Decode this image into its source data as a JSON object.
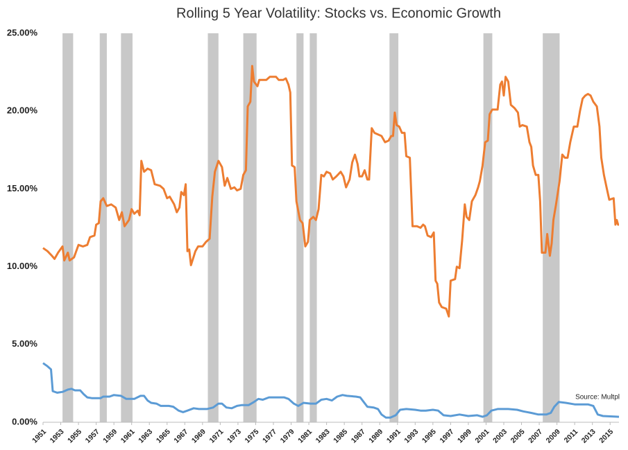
{
  "chart_data": {
    "type": "line",
    "title": "Rolling 5 Year Volatility: Stocks vs. Economic Growth",
    "annotation": "Source: Multpl",
    "xlim": [
      1951,
      2016
    ],
    "xticks": [
      1951,
      1953,
      1955,
      1957,
      1959,
      1961,
      1963,
      1965,
      1967,
      1969,
      1971,
      1973,
      1975,
      1977,
      1979,
      1981,
      1983,
      1985,
      1987,
      1989,
      1991,
      1993,
      1995,
      1997,
      1999,
      2001,
      2003,
      2005,
      2007,
      2009,
      2011,
      2013,
      2015
    ],
    "ylim": [
      0,
      25
    ],
    "yticks": [
      {
        "value": 0,
        "label": "0.00%"
      },
      {
        "value": 5,
        "label": "5.00%"
      },
      {
        "value": 10,
        "label": "10.00%"
      },
      {
        "value": 15,
        "label": "15.00%"
      },
      {
        "value": 20,
        "label": "20.00%"
      },
      {
        "value": 25,
        "label": "25.00%"
      }
    ],
    "grid": false,
    "shaded_x_ranges": [
      [
        1953.2,
        1954.4
      ],
      [
        1957.4,
        1958.2
      ],
      [
        1959.8,
        1961.1
      ],
      [
        1969.6,
        1970.8
      ],
      [
        1973.6,
        1975.1
      ],
      [
        1979.6,
        1980.4
      ],
      [
        1981.1,
        1981.9
      ],
      [
        1990.1,
        1991.1
      ],
      [
        2000.7,
        2001.7
      ],
      [
        2007.4,
        2009.3
      ]
    ],
    "shade_color": "#c8c8c8",
    "series": [
      {
        "color": "#ed7d31",
        "x": [
          1951,
          1951.5,
          1952,
          1952.3,
          1952.7,
          1953.2,
          1953.4,
          1953.8,
          1954,
          1954.5,
          1955,
          1955.5,
          1956,
          1956.3,
          1956.8,
          1957,
          1957.3,
          1957.5,
          1957.8,
          1958.2,
          1958.7,
          1959.2,
          1959.6,
          1959.9,
          1960.2,
          1960.7,
          1961,
          1961.3,
          1961.7,
          1961.9,
          1962.1,
          1962.4,
          1962.8,
          1963.2,
          1963.6,
          1964.2,
          1964.6,
          1965,
          1965.3,
          1965.8,
          1966.1,
          1966.4,
          1966.6,
          1966.9,
          1967.1,
          1967.3,
          1967.5,
          1967.7,
          1968.2,
          1968.5,
          1969,
          1969.4,
          1969.8,
          1970.1,
          1970.4,
          1970.8,
          1971.2,
          1971.5,
          1971.8,
          1972.2,
          1972.6,
          1972.9,
          1973.3,
          1973.6,
          1973.9,
          1974.1,
          1974.4,
          1974.6,
          1974.8,
          1975.2,
          1975.4,
          1976.2,
          1976.6,
          1977.3,
          1977.6,
          1978.1,
          1978.4,
          1978.7,
          1978.9,
          1979.1,
          1979.4,
          1979.6,
          1980,
          1980.3,
          1980.6,
          1980.9,
          1981.1,
          1981.5,
          1981.8,
          1982.1,
          1982.4,
          1982.7,
          1983,
          1983.4,
          1983.7,
          1984.1,
          1984.6,
          1984.9,
          1985.2,
          1985.6,
          1985.9,
          1986.2,
          1986.5,
          1986.7,
          1987,
          1987.3,
          1987.6,
          1987.8,
          1988.1,
          1988.4,
          1988.8,
          1989.2,
          1989.6,
          1990,
          1990.3,
          1990.5,
          1990.7,
          1990.9,
          1991.2,
          1991.5,
          1991.8,
          1992,
          1992.4,
          1992.7,
          1993.2,
          1993.6,
          1993.9,
          1994.1,
          1994.4,
          1994.8,
          1995.1,
          1995.3,
          1995.5,
          1995.7,
          1996,
          1996.5,
          1996.8,
          1997,
          1997.5,
          1997.7,
          1998,
          1998.3,
          1998.6,
          1998.8,
          1999.1,
          1999.4,
          1999.8,
          2000.1,
          2000.3,
          2000.6,
          2000.9,
          2001.2,
          2001.4,
          2001.7,
          2002.3,
          2002.6,
          2002.8,
          2003,
          2003.2,
          2003.5,
          2003.8,
          2004.2,
          2004.6,
          2004.8,
          2005.1,
          2005.6,
          2005.9,
          2006.1,
          2006.3,
          2006.6,
          2006.9,
          2007.1,
          2007.3,
          2007.7,
          2007.9,
          2008.2,
          2008.4,
          2008.6,
          2008.9,
          2009.3,
          2009.6,
          2009.9,
          2010.2,
          2010.5,
          2010.9,
          2011.3,
          2011.6,
          2011.9,
          2012.2,
          2012.5,
          2012.8,
          2013.1,
          2013.5,
          2013.8,
          2014,
          2014.3,
          2014.6,
          2014.9,
          2015.4,
          2015.6,
          2015.75,
          2015.9,
          2016
        ],
        "values": [
          11.2,
          11.0,
          10.7,
          10.5,
          10.9,
          11.3,
          10.4,
          10.9,
          10.4,
          10.6,
          11.4,
          11.3,
          11.4,
          11.9,
          12.0,
          12.7,
          12.8,
          14.2,
          14.4,
          13.9,
          14.0,
          13.8,
          13.0,
          13.5,
          12.6,
          13.0,
          13.7,
          13.4,
          13.6,
          13.3,
          16.8,
          16.1,
          16.3,
          16.2,
          15.3,
          15.2,
          15.0,
          14.4,
          14.5,
          14.0,
          13.5,
          13.8,
          14.8,
          14.6,
          15.3,
          11.0,
          11.1,
          10.1,
          11.0,
          11.3,
          11.3,
          11.6,
          11.8,
          14.5,
          16.1,
          16.8,
          16.4,
          15.2,
          15.7,
          15.0,
          15.1,
          14.9,
          15.0,
          15.9,
          16.2,
          20.3,
          20.6,
          22.9,
          21.9,
          21.6,
          22.0,
          22.0,
          22.2,
          22.2,
          22.0,
          22.0,
          22.1,
          21.7,
          21.2,
          16.5,
          16.4,
          14.2,
          13.0,
          12.8,
          11.3,
          11.6,
          13.0,
          13.2,
          13.0,
          13.7,
          15.9,
          15.8,
          16.1,
          16.0,
          15.6,
          15.8,
          16.1,
          15.8,
          15.1,
          15.6,
          16.7,
          17.2,
          16.6,
          15.8,
          15.8,
          16.2,
          15.6,
          15.6,
          18.9,
          18.6,
          18.5,
          18.4,
          18.0,
          18.1,
          18.4,
          18.4,
          19.9,
          19.1,
          19.0,
          18.6,
          18.6,
          17.1,
          17.0,
          12.6,
          12.6,
          12.5,
          12.7,
          12.6,
          12.0,
          11.9,
          12.2,
          9.1,
          8.9,
          7.7,
          7.4,
          7.3,
          6.8,
          9.1,
          9.2,
          10.0,
          9.9,
          11.7,
          14.0,
          13.2,
          13.0,
          14.2,
          14.6,
          15.1,
          15.5,
          16.5,
          18.0,
          18.1,
          19.8,
          20.1,
          20.1,
          21.7,
          21.9,
          21.0,
          22.2,
          21.9,
          20.4,
          20.2,
          19.9,
          19.0,
          19.1,
          19.0,
          18.0,
          17.7,
          16.5,
          15.9,
          15.9,
          14.2,
          10.9,
          10.9,
          12.1,
          10.7,
          11.5,
          13.0,
          14.0,
          15.5,
          17.2,
          17.0,
          17.0,
          18.0,
          19.0,
          19.0,
          20.0,
          20.8,
          21.0,
          21.1,
          21.0,
          20.6,
          20.3,
          19.0,
          17.0,
          15.9,
          15.1,
          14.3,
          14.4,
          12.7,
          13.0,
          12.7,
          12.7
        ]
      },
      {
        "color": "#5b9bd5",
        "x": [
          1951,
          1951.5,
          1951.9,
          1952.1,
          1952.6,
          1953.2,
          1953.8,
          1954.2,
          1954.6,
          1955.2,
          1955.6,
          1956,
          1956.5,
          1957.5,
          1957.8,
          1958.5,
          1959,
          1959.8,
          1960.4,
          1961.3,
          1962,
          1962.4,
          1962.8,
          1963.2,
          1963.8,
          1964.3,
          1965.2,
          1965.7,
          1966.3,
          1966.8,
          1967.3,
          1968,
          1968.6,
          1969.5,
          1970.2,
          1970.8,
          1971.2,
          1971.7,
          1972.3,
          1972.9,
          1973.4,
          1974.2,
          1974.8,
          1975.3,
          1975.8,
          1976.5,
          1978.2,
          1978.7,
          1979.3,
          1979.8,
          1980.4,
          1981.2,
          1981.8,
          1982.4,
          1983,
          1983.6,
          1984.2,
          1984.8,
          1985.3,
          1986.3,
          1986.8,
          1987.2,
          1987.6,
          1988.3,
          1988.8,
          1989.2,
          1989.7,
          1990.2,
          1990.8,
          1991.3,
          1992,
          1993,
          1993.6,
          1994.2,
          1995,
          1995.6,
          1996.2,
          1997,
          1998,
          1999,
          2000,
          2000.6,
          2001.1,
          2001.6,
          2002.3,
          2003.5,
          2004.5,
          2005.2,
          2006.1,
          2006.9,
          2007.8,
          2008.3,
          2008.7,
          2009.2,
          2010,
          2011,
          2012.5,
          2013.1,
          2013.6,
          2014.2,
          2016
        ],
        "values": [
          3.8,
          3.6,
          3.4,
          2.0,
          1.9,
          1.95,
          2.1,
          2.15,
          2.05,
          2.05,
          1.8,
          1.6,
          1.55,
          1.55,
          1.65,
          1.65,
          1.75,
          1.7,
          1.5,
          1.5,
          1.7,
          1.7,
          1.4,
          1.25,
          1.2,
          1.05,
          1.05,
          1.0,
          0.75,
          0.65,
          0.75,
          0.9,
          0.85,
          0.85,
          0.95,
          1.2,
          1.2,
          0.95,
          0.9,
          1.05,
          1.1,
          1.1,
          1.3,
          1.5,
          1.45,
          1.6,
          1.6,
          1.5,
          1.2,
          1.05,
          1.25,
          1.2,
          1.2,
          1.45,
          1.5,
          1.4,
          1.65,
          1.75,
          1.7,
          1.65,
          1.6,
          1.3,
          1.0,
          0.95,
          0.85,
          0.5,
          0.3,
          0.3,
          0.45,
          0.8,
          0.85,
          0.8,
          0.75,
          0.75,
          0.8,
          0.75,
          0.45,
          0.4,
          0.5,
          0.4,
          0.45,
          0.35,
          0.45,
          0.75,
          0.85,
          0.85,
          0.8,
          0.7,
          0.6,
          0.5,
          0.5,
          0.6,
          1.0,
          1.3,
          1.25,
          1.15,
          1.15,
          1.05,
          0.5,
          0.4,
          0.35
        ]
      }
    ]
  }
}
